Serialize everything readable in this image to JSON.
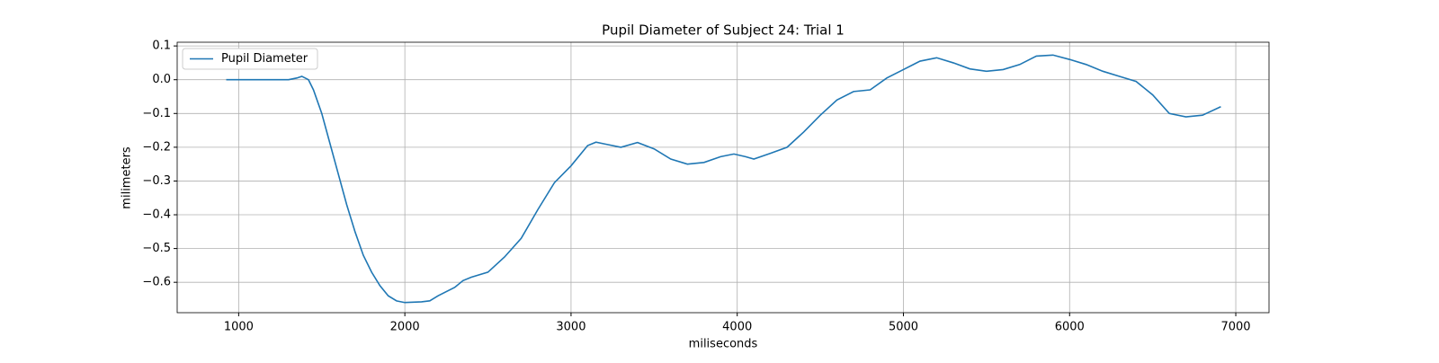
{
  "chart_data": {
    "type": "line",
    "title": "Pupil Diameter of Subject 24: Trial 1",
    "x_label": "miliseconds",
    "y_label": "milimeters",
    "x": [
      925,
      1000,
      1100,
      1200,
      1300,
      1350,
      1380,
      1420,
      1450,
      1500,
      1550,
      1600,
      1650,
      1700,
      1750,
      1800,
      1850,
      1900,
      1950,
      2000,
      2100,
      2150,
      2200,
      2300,
      2350,
      2400,
      2500,
      2600,
      2700,
      2800,
      2900,
      3000,
      3100,
      3150,
      3200,
      3300,
      3400,
      3500,
      3600,
      3700,
      3800,
      3900,
      3980,
      4050,
      4100,
      4200,
      4300,
      4400,
      4500,
      4600,
      4700,
      4800,
      4900,
      5000,
      5100,
      5200,
      5300,
      5400,
      5500,
      5600,
      5700,
      5800,
      5900,
      6000,
      6100,
      6200,
      6300,
      6400,
      6500,
      6600,
      6700,
      6800,
      6910
    ],
    "series": [
      {
        "name": "Pupil Diameter",
        "color": "#1f77b4",
        "values": [
          0,
          0,
          0,
          0,
          0,
          0.005,
          0.01,
          0,
          -0.03,
          -0.1,
          -0.19,
          -0.28,
          -0.37,
          -0.45,
          -0.52,
          -0.57,
          -0.61,
          -0.64,
          -0.655,
          -0.66,
          -0.658,
          -0.655,
          -0.64,
          -0.615,
          -0.595,
          -0.585,
          -0.57,
          -0.525,
          -0.47,
          -0.385,
          -0.305,
          -0.255,
          -0.195,
          -0.185,
          -0.19,
          -0.2,
          -0.186,
          -0.205,
          -0.235,
          -0.25,
          -0.245,
          -0.228,
          -0.22,
          -0.228,
          -0.235,
          -0.218,
          -0.2,
          -0.155,
          -0.105,
          -0.06,
          -0.035,
          -0.03,
          0.005,
          0.03,
          0.055,
          0.065,
          0.05,
          0.032,
          0.025,
          0.03,
          0.045,
          0.07,
          0.073,
          0.06,
          0.045,
          0.025,
          0.01,
          -0.005,
          -0.045,
          -0.1,
          -0.11,
          -0.105,
          -0.08
        ]
      }
    ],
    "xlim": [
      630,
      7200
    ],
    "ylim": [
      -0.69,
      0.111
    ],
    "xticks": [
      1000,
      2000,
      3000,
      4000,
      5000,
      6000,
      7000
    ],
    "yticks": [
      0.1,
      {
        "value": 0,
        "label": "0.0"
      },
      {
        "value": -0.1,
        "label": "−0.1"
      },
      {
        "value": -0.2,
        "label": "−0.2"
      },
      {
        "value": -0.3,
        "label": "−0.3"
      },
      {
        "value": -0.4,
        "label": "−0.4"
      },
      {
        "value": -0.5,
        "label": "−0.5"
      },
      {
        "value": -0.6,
        "label": "−0.6"
      }
    ],
    "grid": true,
    "legend": "upper-left"
  }
}
